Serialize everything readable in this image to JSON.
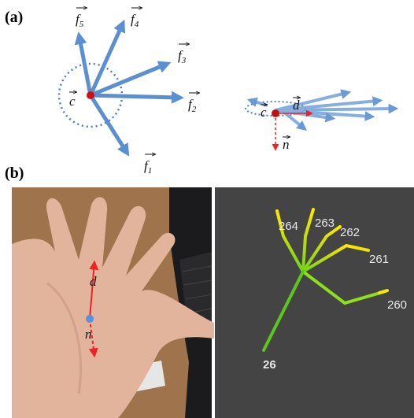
{
  "panel_a": {
    "label": "(a)",
    "vectors": [
      {
        "symbol": "f",
        "subscript": "5"
      },
      {
        "symbol": "f",
        "subscript": "4"
      },
      {
        "symbol": "f",
        "subscript": "3"
      },
      {
        "symbol": "f",
        "subscript": "2"
      },
      {
        "symbol": "f",
        "subscript": "1"
      }
    ],
    "center": "c",
    "direction": "d",
    "normal": "n"
  },
  "panel_b": {
    "label": "(b)",
    "photo_labels": {
      "direction": "d",
      "normal": "n"
    },
    "joint_labels": [
      "264",
      "263",
      "262",
      "261",
      "260",
      "26"
    ]
  }
}
